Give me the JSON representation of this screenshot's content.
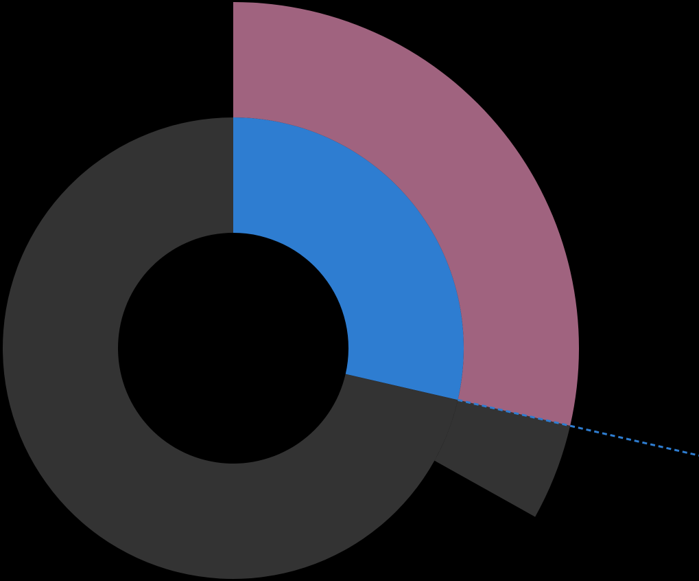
{
  "chart_data": [
    {
      "type": "pie",
      "variant": "donut",
      "title": "",
      "background": "#000000",
      "start_angle_deg": 0,
      "direction": "clockwise",
      "slices": [
        {
          "label": "",
          "value": 28.6,
          "color": "#2e7dd1"
        },
        {
          "label": "",
          "value": 71.4,
          "color": "#333333"
        }
      ]
    },
    {
      "type": "pie",
      "variant": "partial-sectors",
      "title": "",
      "start_angle_deg": 0,
      "direction": "clockwise",
      "slices": [
        {
          "label": "",
          "value": 28.6,
          "color": "#a0637f"
        },
        {
          "label": "",
          "value": 4.5,
          "color": "#333333"
        }
      ]
    }
  ],
  "connector": {
    "style": "dotted",
    "color": "#2e7dd1"
  }
}
